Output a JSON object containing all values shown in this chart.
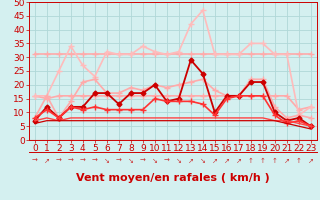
{
  "xlabel": "Vent moyen/en rafales ( km/h )",
  "bg_color": "#d4f0f0",
  "grid_color": "#b0d8d8",
  "xlim": [
    -0.5,
    23.5
  ],
  "ylim": [
    0,
    50
  ],
  "yticks": [
    0,
    5,
    10,
    15,
    20,
    25,
    30,
    35,
    40,
    45,
    50
  ],
  "xticks": [
    0,
    1,
    2,
    3,
    4,
    5,
    6,
    7,
    8,
    9,
    10,
    11,
    12,
    13,
    14,
    15,
    16,
    17,
    18,
    19,
    20,
    21,
    22,
    23
  ],
  "series": [
    {
      "comment": "flat pink line ~31, dips in middle",
      "x": [
        0,
        1,
        2,
        3,
        4,
        5,
        6,
        7,
        8,
        9,
        10,
        11,
        12,
        13,
        14,
        15,
        16,
        17,
        18,
        19,
        20,
        21,
        22,
        23
      ],
      "y": [
        31,
        31,
        31,
        31,
        31,
        31,
        31,
        31,
        31,
        31,
        31,
        31,
        31,
        31,
        31,
        31,
        31,
        31,
        31,
        31,
        31,
        31,
        31,
        31
      ],
      "color": "#ffaaaa",
      "lw": 1.2,
      "marker": "+",
      "ms": 4
    },
    {
      "comment": "flat pink line ~16, dips at end",
      "x": [
        0,
        1,
        2,
        3,
        4,
        5,
        6,
        7,
        8,
        9,
        10,
        11,
        12,
        13,
        14,
        15,
        16,
        17,
        18,
        19,
        20,
        21,
        22,
        23
      ],
      "y": [
        16,
        15,
        16,
        16,
        16,
        16,
        16,
        16,
        16,
        16,
        16,
        16,
        16,
        16,
        16,
        16,
        16,
        16,
        16,
        16,
        16,
        16,
        11,
        12
      ],
      "color": "#ffaaaa",
      "lw": 1.2,
      "marker": "+",
      "ms": 4
    },
    {
      "comment": "wavy pink line, peaks at 14=47",
      "x": [
        0,
        1,
        2,
        3,
        4,
        5,
        6,
        7,
        8,
        9,
        10,
        11,
        12,
        13,
        14,
        15,
        16,
        17,
        18,
        19,
        20,
        21,
        22,
        23
      ],
      "y": [
        16,
        16,
        25,
        34,
        27,
        23,
        32,
        31,
        31,
        34,
        32,
        31,
        32,
        42,
        47,
        31,
        31,
        31,
        35,
        35,
        31,
        31,
        9,
        12
      ],
      "color": "#ffbbbb",
      "lw": 1.2,
      "marker": "+",
      "ms": 4
    },
    {
      "comment": "wavy medium pink line dipping",
      "x": [
        0,
        1,
        2,
        3,
        4,
        5,
        6,
        7,
        8,
        9,
        10,
        11,
        12,
        13,
        14,
        15,
        16,
        17,
        18,
        19,
        20,
        21,
        22,
        23
      ],
      "y": [
        8,
        16,
        8,
        14,
        21,
        22,
        17,
        17,
        19,
        18,
        20,
        19,
        20,
        21,
        22,
        18,
        16,
        16,
        22,
        22,
        12,
        8,
        9,
        8
      ],
      "color": "#ffaaaa",
      "lw": 1.2,
      "marker": "+",
      "ms": 4
    },
    {
      "comment": "dark red spiky line main",
      "x": [
        0,
        1,
        2,
        3,
        4,
        5,
        6,
        7,
        8,
        9,
        10,
        11,
        12,
        13,
        14,
        15,
        16,
        17,
        18,
        19,
        20,
        21,
        22,
        23
      ],
      "y": [
        7,
        12,
        8,
        12,
        12,
        17,
        17,
        13,
        17,
        17,
        20,
        14,
        15,
        29,
        24,
        10,
        16,
        16,
        21,
        21,
        10,
        7,
        8,
        5
      ],
      "color": "#cc0000",
      "lw": 1.3,
      "marker": "D",
      "ms": 2.5
    },
    {
      "comment": "medium red line with + markers",
      "x": [
        0,
        1,
        2,
        3,
        4,
        5,
        6,
        7,
        8,
        9,
        10,
        11,
        12,
        13,
        14,
        15,
        16,
        17,
        18,
        19,
        20,
        21,
        22,
        23
      ],
      "y": [
        8,
        11,
        8,
        12,
        11,
        12,
        11,
        11,
        11,
        11,
        15,
        14,
        14,
        14,
        13,
        9,
        15,
        16,
        16,
        16,
        9,
        6,
        7,
        5
      ],
      "color": "#ff3333",
      "lw": 1.2,
      "marker": "+",
      "ms": 4
    },
    {
      "comment": "flat low red line ~8",
      "x": [
        0,
        1,
        2,
        3,
        4,
        5,
        6,
        7,
        8,
        9,
        10,
        11,
        12,
        13,
        14,
        15,
        16,
        17,
        18,
        19,
        20,
        21,
        22,
        23
      ],
      "y": [
        7,
        8,
        7,
        8,
        8,
        8,
        8,
        8,
        8,
        8,
        8,
        8,
        8,
        8,
        8,
        8,
        8,
        8,
        8,
        8,
        7,
        7,
        6,
        5
      ],
      "color": "#ff4444",
      "lw": 1.0,
      "marker": null,
      "ms": 0
    },
    {
      "comment": "very flat low dark line ~7",
      "x": [
        0,
        1,
        2,
        3,
        4,
        5,
        6,
        7,
        8,
        9,
        10,
        11,
        12,
        13,
        14,
        15,
        16,
        17,
        18,
        19,
        20,
        21,
        22,
        23
      ],
      "y": [
        6,
        7,
        7,
        7,
        7,
        7,
        7,
        7,
        7,
        7,
        7,
        7,
        7,
        7,
        7,
        7,
        7,
        7,
        7,
        7,
        7,
        6,
        5,
        4
      ],
      "color": "#cc0000",
      "lw": 0.9,
      "marker": null,
      "ms": 0
    }
  ],
  "arrows": [
    "→",
    "↗",
    "→",
    "→",
    "→",
    "→",
    "↘",
    "→",
    "↘",
    "→",
    "↘",
    "→",
    "↘",
    "↗",
    "↘",
    "↗",
    "↗",
    "↗",
    "↑",
    "↑",
    "↑",
    "↗",
    "↑",
    "↗"
  ],
  "xlabel_fontsize": 8,
  "tick_fontsize": 6.5,
  "tick_color": "#cc0000"
}
